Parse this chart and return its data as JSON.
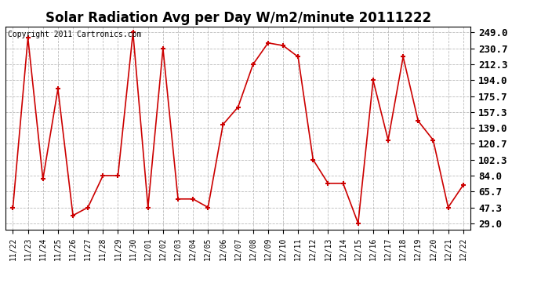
{
  "title": "Solar Radiation Avg per Day W/m2/minute 20111222",
  "copyright_text": "Copyright 2011 Cartronics.com",
  "labels": [
    "11/22",
    "11/23",
    "11/24",
    "11/25",
    "11/26",
    "11/27",
    "11/28",
    "11/29",
    "11/30",
    "12/01",
    "12/02",
    "12/03",
    "12/04",
    "12/05",
    "12/06",
    "12/07",
    "12/08",
    "12/09",
    "12/10",
    "12/11",
    "12/12",
    "12/13",
    "12/14",
    "12/15",
    "12/16",
    "12/17",
    "12/18",
    "12/19",
    "12/20",
    "12/21",
    "12/22"
  ],
  "values": [
    47.3,
    243.0,
    80.0,
    184.0,
    38.0,
    47.3,
    84.0,
    84.0,
    249.0,
    47.3,
    230.7,
    57.0,
    57.0,
    47.3,
    143.0,
    163.0,
    212.3,
    237.0,
    234.0,
    221.0,
    102.3,
    75.0,
    75.0,
    29.0,
    194.0,
    125.0,
    221.0,
    147.0,
    125.0,
    47.3,
    73.0
  ],
  "yticks": [
    29.0,
    47.3,
    65.7,
    84.0,
    102.3,
    120.7,
    139.0,
    157.3,
    175.7,
    194.0,
    212.3,
    230.7,
    249.0
  ],
  "line_color": "#cc0000",
  "marker_color": "#cc0000",
  "bg_color": "#ffffff",
  "plot_bg_color": "#ffffff",
  "grid_color": "#bbbbbb",
  "title_fontsize": 12,
  "copyright_fontsize": 7,
  "yticklabel_fontsize": 9,
  "xticklabel_fontsize": 7
}
